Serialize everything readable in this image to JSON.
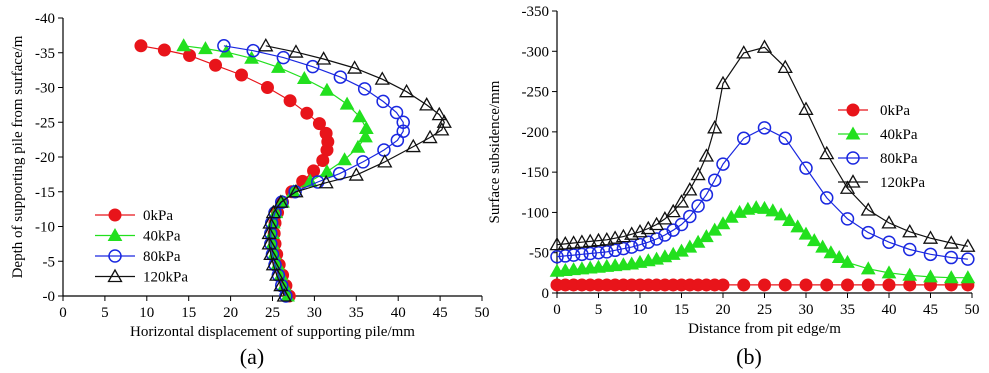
{
  "panels": {
    "a": {
      "label": "(a)"
    },
    "b": {
      "label": "(b)"
    }
  },
  "chart_data": [
    {
      "type": "line",
      "orientation": "horizontal-profile",
      "xlabel": "Horizontal displacement of supporting pile/mm",
      "ylabel": "Depth of supporting pile from surface/m",
      "xlim": [
        0,
        50
      ],
      "ylim": [
        0,
        -40
      ],
      "x_ticks": [
        0,
        5,
        10,
        15,
        20,
        25,
        30,
        35,
        40,
        45,
        50
      ],
      "y_ticks": [
        0,
        -5,
        -10,
        -15,
        -20,
        -25,
        -30,
        -35,
        -40
      ],
      "y_tick_labels": [
        "-0",
        "-5",
        "-10",
        "-15",
        "-20",
        "-25",
        "-30",
        "-35",
        "-40"
      ],
      "legend_position": "lower-left",
      "grid": false,
      "series": [
        {
          "name": "0kPa",
          "marker": "filled-circle",
          "color": "#e8141a",
          "points": [
            [
              27,
              0
            ],
            [
              26.6,
              -1.5
            ],
            [
              26.2,
              -3
            ],
            [
              25.8,
              -4.5
            ],
            [
              25.5,
              -6
            ],
            [
              25.3,
              -7.5
            ],
            [
              25.2,
              -9
            ],
            [
              25.3,
              -10.5
            ],
            [
              25.6,
              -12
            ],
            [
              26.2,
              -13.5
            ],
            [
              27.3,
              -15
            ],
            [
              28.6,
              -16.5
            ],
            [
              29.9,
              -18
            ],
            [
              31,
              -19.5
            ],
            [
              31.5,
              -21
            ],
            [
              31.6,
              -22.2
            ],
            [
              31.4,
              -23.4
            ],
            [
              30.6,
              -24.8
            ],
            [
              29.1,
              -26.3
            ],
            [
              27.1,
              -28.1
            ],
            [
              24.4,
              -30
            ],
            [
              21.3,
              -31.8
            ],
            [
              18.2,
              -33.2
            ],
            [
              15.1,
              -34.6
            ],
            [
              12.1,
              -35.4
            ],
            [
              9.3,
              -36
            ]
          ],
          "marker_stride": 1
        },
        {
          "name": "40kPa",
          "marker": "filled-triangle",
          "color": "#22e01e",
          "points": [
            [
              26.8,
              0
            ],
            [
              26.4,
              -1.5
            ],
            [
              26,
              -3
            ],
            [
              25.6,
              -4.5
            ],
            [
              25.2,
              -6
            ],
            [
              25,
              -7.5
            ],
            [
              25,
              -9
            ],
            [
              25.1,
              -10.5
            ],
            [
              25.4,
              -12
            ],
            [
              26.2,
              -13.5
            ],
            [
              27.5,
              -15
            ],
            [
              29.5,
              -16.5
            ],
            [
              31.5,
              -17.9
            ],
            [
              33.6,
              -19.6
            ],
            [
              35.2,
              -21.4
            ],
            [
              36.1,
              -22.9
            ],
            [
              36.2,
              -24.1
            ],
            [
              35.4,
              -25.8
            ],
            [
              33.9,
              -27.6
            ],
            [
              31.5,
              -29.6
            ],
            [
              28.8,
              -31.3
            ],
            [
              25.7,
              -32.9
            ],
            [
              22.5,
              -34.2
            ],
            [
              19.5,
              -35.1
            ],
            [
              17,
              -35.6
            ],
            [
              14.4,
              -36
            ]
          ],
          "marker_stride": 1
        },
        {
          "name": "80kPa",
          "marker": "open-circle",
          "color": "#1a28e0",
          "points": [
            [
              26.6,
              0
            ],
            [
              26.1,
              -1.5
            ],
            [
              25.7,
              -3
            ],
            [
              25.3,
              -4.5
            ],
            [
              25,
              -6
            ],
            [
              24.8,
              -7.5
            ],
            [
              24.8,
              -9
            ],
            [
              24.9,
              -10.5
            ],
            [
              25.3,
              -12
            ],
            [
              26.1,
              -13.5
            ],
            [
              27.7,
              -15
            ],
            [
              30.4,
              -16.4
            ],
            [
              33,
              -17.6
            ],
            [
              35.8,
              -19.3
            ],
            [
              38.3,
              -21
            ],
            [
              39.9,
              -22.4
            ],
            [
              40.6,
              -23.7
            ],
            [
              40.6,
              -25
            ],
            [
              39.8,
              -26.4
            ],
            [
              38.2,
              -28
            ],
            [
              36,
              -29.8
            ],
            [
              33.1,
              -31.5
            ],
            [
              29.8,
              -33
            ],
            [
              26.3,
              -34.3
            ],
            [
              22.7,
              -35.3
            ],
            [
              19.2,
              -36
            ]
          ],
          "marker_stride": 1
        },
        {
          "name": "120kPa",
          "marker": "open-triangle",
          "color": "#111111",
          "points": [
            [
              26.4,
              0
            ],
            [
              26,
              -1.5
            ],
            [
              25.5,
              -3
            ],
            [
              25.1,
              -4.5
            ],
            [
              24.8,
              -6
            ],
            [
              24.6,
              -7.5
            ],
            [
              24.6,
              -9
            ],
            [
              24.7,
              -10.5
            ],
            [
              25.1,
              -12
            ],
            [
              26,
              -13.5
            ],
            [
              27.8,
              -15
            ],
            [
              31.4,
              -16.3
            ],
            [
              35,
              -17.4
            ],
            [
              38.4,
              -19.3
            ],
            [
              41.8,
              -21.5
            ],
            [
              43.8,
              -22.8
            ],
            [
              45.2,
              -23.9
            ],
            [
              45.5,
              -25
            ],
            [
              44.9,
              -26.1
            ],
            [
              43.4,
              -27.5
            ],
            [
              41,
              -29.4
            ],
            [
              38.1,
              -31.2
            ],
            [
              34.8,
              -32.8
            ],
            [
              31.1,
              -34.1
            ],
            [
              27.8,
              -35.1
            ],
            [
              24.2,
              -36
            ]
          ],
          "marker_stride": 1
        }
      ]
    },
    {
      "type": "line",
      "xlabel": "Distance from pit edge/m",
      "ylabel": "Surface subsidence/mm",
      "xlim": [
        0,
        50
      ],
      "ylim": [
        0,
        -350
      ],
      "x_ticks": [
        0,
        5,
        10,
        15,
        20,
        25,
        30,
        35,
        40,
        45,
        50
      ],
      "y_ticks": [
        0,
        -50,
        -100,
        -150,
        -200,
        -250,
        -300,
        -350
      ],
      "y_tick_labels": [
        "0",
        "-50",
        "-100",
        "-150",
        "-200",
        "-250",
        "-300",
        "-350"
      ],
      "legend_position": "top-right",
      "grid": false,
      "series": [
        {
          "name": "0kPa",
          "marker": "filled-circle",
          "color": "#e8141a",
          "x": [
            0,
            1,
            2,
            3,
            4,
            5,
            6,
            7,
            8,
            9,
            10,
            11,
            12,
            13,
            14,
            15,
            16,
            17,
            18,
            19,
            20,
            22.5,
            25,
            27.5,
            30,
            32.5,
            35,
            37.5,
            40,
            42.5,
            45,
            47.5,
            49.5
          ],
          "y": [
            -10,
            -10,
            -10,
            -10,
            -10,
            -10,
            -10,
            -10,
            -10,
            -10,
            -10,
            -10,
            -10,
            -10,
            -10,
            -10,
            -10,
            -10,
            -10,
            -10,
            -10,
            -10,
            -10,
            -10,
            -10,
            -10,
            -10,
            -10,
            -10,
            -10,
            -10,
            -10,
            -10
          ]
        },
        {
          "name": "40kPa",
          "marker": "filled-triangle",
          "color": "#22e01e",
          "x": [
            0,
            1,
            2,
            3,
            4,
            5,
            6,
            7,
            8,
            9,
            10,
            11,
            12,
            13,
            14,
            15,
            16,
            17,
            18,
            19,
            20,
            21,
            22,
            23,
            24,
            25,
            26,
            27,
            28,
            29,
            30,
            31,
            32,
            33,
            34,
            35,
            37.5,
            40,
            42.5,
            45,
            47.5,
            49.5
          ],
          "y": [
            -27,
            -28,
            -29,
            -30,
            -31,
            -32,
            -33,
            -34,
            -35,
            -36,
            -38,
            -40,
            -42,
            -45,
            -48,
            -52,
            -57,
            -63,
            -70,
            -78,
            -86,
            -94,
            -100,
            -104,
            -106,
            -105,
            -102,
            -97,
            -90,
            -82,
            -73,
            -65,
            -57,
            -50,
            -44,
            -38,
            -30,
            -25,
            -22,
            -20,
            -19,
            -19
          ]
        },
        {
          "name": "80kPa",
          "marker": "open-circle",
          "color": "#1a28e0",
          "x": [
            0,
            1,
            2,
            3,
            4,
            5,
            6,
            7,
            8,
            9,
            10,
            11,
            12,
            13,
            14,
            15,
            16,
            17,
            18,
            19,
            20,
            22.5,
            25,
            27.5,
            30,
            32.5,
            35,
            37.5,
            40,
            42.5,
            45,
            47.5,
            49.5
          ],
          "y": [
            -45,
            -46,
            -47,
            -48,
            -49,
            -50,
            -51,
            -53,
            -55,
            -57,
            -60,
            -63,
            -67,
            -72,
            -78,
            -85,
            -95,
            -108,
            -122,
            -140,
            -160,
            -192,
            -205,
            -192,
            -155,
            -118,
            -92,
            -75,
            -63,
            -54,
            -48,
            -44,
            -42
          ]
        },
        {
          "name": "120kPa",
          "marker": "open-triangle",
          "color": "#111111",
          "x": [
            0,
            1,
            2,
            3,
            4,
            5,
            6,
            7,
            8,
            9,
            10,
            11,
            12,
            13,
            14,
            15,
            16,
            17,
            18,
            19,
            20,
            22.5,
            25,
            27.5,
            30,
            32.5,
            35,
            37.5,
            40,
            42.5,
            45,
            47.5,
            49.5
          ],
          "y": [
            -60,
            -61,
            -62,
            -63,
            -64,
            -65,
            -66,
            -68,
            -70,
            -73,
            -76,
            -80,
            -85,
            -92,
            -101,
            -113,
            -128,
            -147,
            -170,
            -205,
            -260,
            -298,
            -305,
            -280,
            -228,
            -173,
            -130,
            -103,
            -87,
            -76,
            -68,
            -62,
            -58
          ]
        }
      ]
    }
  ]
}
